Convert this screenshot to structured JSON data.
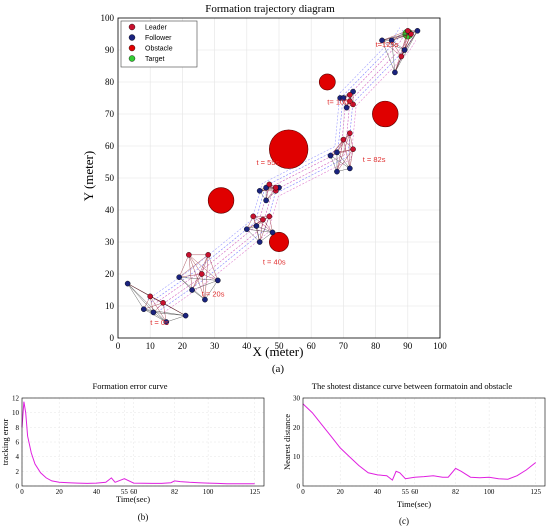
{
  "colors": {
    "leader": "#c8102e",
    "follower": "#1a237e",
    "obstacle": "#e00000",
    "target": "#33cc33",
    "curve": "#e020e0",
    "timestamp": "#e03030"
  },
  "chart_data": [
    {
      "type": "scatter",
      "title": "Formation trajectory diagram",
      "xlabel": "X  (meter)",
      "ylabel": "Y  (meter)",
      "xlim": [
        0,
        100
      ],
      "ylim": [
        0,
        100
      ],
      "xticks": [
        "0",
        "10",
        "20",
        "30",
        "40",
        "50",
        "60",
        "70",
        "80",
        "90",
        "100"
      ],
      "yticks": [
        "0",
        "10",
        "20",
        "30",
        "40",
        "50",
        "60",
        "70",
        "80",
        "90",
        "100"
      ],
      "grid": true,
      "legend_position": "top-left",
      "legend": [
        {
          "label": "Leader",
          "kind": "leader"
        },
        {
          "label": "Follower",
          "kind": "follower"
        },
        {
          "label": "Obstacle",
          "kind": "obstacle"
        },
        {
          "label": "Target",
          "kind": "target"
        }
      ],
      "obstacles": [
        {
          "x": 32,
          "y": 43,
          "r": 4
        },
        {
          "x": 50,
          "y": 30,
          "r": 3
        },
        {
          "x": 53,
          "y": 59,
          "r": 6
        },
        {
          "x": 65,
          "y": 80,
          "r": 2.5
        },
        {
          "x": 83,
          "y": 70,
          "r": 4
        }
      ],
      "target": {
        "x": 90,
        "y": 95
      },
      "formations": [
        {
          "time_label": "t = 0s",
          "label_x": 10,
          "label_y": 4,
          "leaders": [
            [
              14,
              11
            ],
            [
              10,
              13
            ]
          ],
          "followers": [
            [
              3,
              17
            ],
            [
              11,
              8
            ],
            [
              15,
              5
            ],
            [
              8,
              9
            ],
            [
              21,
              7
            ]
          ]
        },
        {
          "time_label": "t = 20s",
          "label_x": 26,
          "label_y": 13,
          "leaders": [
            [
              26,
              20
            ],
            [
              22,
              26
            ],
            [
              28,
              26
            ]
          ],
          "followers": [
            [
              19,
              19
            ],
            [
              23,
              15
            ],
            [
              27,
              12
            ],
            [
              31,
              18
            ]
          ]
        },
        {
          "time_label": "t = 40s",
          "label_x": 45,
          "label_y": 23,
          "leaders": [
            [
              45,
              37
            ],
            [
              42,
              38
            ],
            [
              47,
              38
            ]
          ],
          "followers": [
            [
              40,
              34
            ],
            [
              43,
              35
            ],
            [
              44,
              30
            ],
            [
              48,
              33
            ]
          ]
        },
        {
          "time_label": "t = 55s",
          "label_x": 43,
          "label_y": 54,
          "leaders": [
            [
              47,
              48
            ],
            [
              49,
              46
            ],
            [
              49,
              47
            ]
          ],
          "followers": [
            [
              44,
              46
            ],
            [
              46,
              47
            ],
            [
              46,
              43
            ],
            [
              50,
              47
            ]
          ]
        },
        {
          "time_label": "t = 82s",
          "label_x": 76,
          "label_y": 55,
          "leaders": [
            [
              73,
              59
            ],
            [
              70,
              62
            ],
            [
              72,
              64
            ]
          ],
          "followers": [
            [
              66,
              57
            ],
            [
              68,
              58
            ],
            [
              68,
              52
            ],
            [
              72,
              53
            ]
          ]
        },
        {
          "time_label": "t= 100s",
          "label_x": 65,
          "label_y": 73,
          "leaders": [
            [
              72,
              76
            ],
            [
              73,
              73
            ],
            [
              72,
              74
            ]
          ],
          "followers": [
            [
              69,
              75
            ],
            [
              70,
              75
            ],
            [
              71,
              72
            ],
            [
              73,
              77
            ]
          ]
        },
        {
          "time_label": "t=125s",
          "label_x": 80,
          "label_y": 91,
          "leaders": [
            [
              88,
              88
            ],
            [
              91,
              95
            ],
            [
              90,
              96
            ]
          ],
          "followers": [
            [
              82,
              93
            ],
            [
              85,
              93
            ],
            [
              86,
              83
            ],
            [
              89,
              90
            ],
            [
              93,
              96
            ]
          ]
        }
      ],
      "caption": "(a)"
    },
    {
      "type": "line",
      "title": "Formation error curve",
      "xlabel": "Time(sec)",
      "ylabel": "tracking error",
      "xlim": [
        0,
        130
      ],
      "ylim": [
        0,
        12
      ],
      "xticks": [
        "0",
        "20",
        "40",
        "55",
        "60",
        "82",
        "100",
        "125"
      ],
      "yticks": [
        "0",
        "2",
        "4",
        "6",
        "8",
        "10",
        "12"
      ],
      "grid": true,
      "series": [
        {
          "x": [
            0,
            1,
            2,
            3,
            5,
            7,
            10,
            13,
            16,
            20,
            25,
            30,
            35,
            40,
            45,
            48,
            50,
            55,
            60,
            70,
            75,
            80,
            82,
            85,
            90,
            95,
            100,
            105,
            110,
            115,
            120,
            125
          ],
          "values": [
            8,
            11.5,
            10,
            6.8,
            4.5,
            3,
            1.8,
            1.1,
            0.7,
            0.5,
            0.45,
            0.4,
            0.35,
            0.4,
            0.5,
            1.1,
            0.5,
            1.0,
            0.4,
            0.35,
            0.35,
            0.45,
            0.7,
            0.6,
            0.5,
            0.45,
            0.4,
            0.35,
            0.3,
            0.3,
            0.3,
            0.3
          ]
        }
      ],
      "caption": "(b)"
    },
    {
      "type": "line",
      "title": "The shotest distance curve between formatoin and obstacle",
      "xlabel": "Time(sec)",
      "ylabel": "Nearest distance",
      "xlim": [
        0,
        130
      ],
      "ylim": [
        0,
        30
      ],
      "xticks": [
        "0",
        "20",
        "40",
        "55",
        "60",
        "82",
        "100",
        "125"
      ],
      "yticks": [
        "0",
        "10",
        "20",
        "30"
      ],
      "grid": true,
      "series": [
        {
          "x": [
            0,
            5,
            10,
            15,
            20,
            25,
            30,
            35,
            40,
            45,
            48,
            50,
            52,
            55,
            60,
            65,
            70,
            75,
            78,
            82,
            85,
            90,
            95,
            100,
            105,
            110,
            115,
            120,
            125
          ],
          "values": [
            28,
            25,
            21,
            17,
            13,
            10,
            7,
            4.5,
            3.8,
            3.5,
            2,
            5,
            4.5,
            2.5,
            3,
            3.2,
            3.5,
            3,
            3,
            6,
            5,
            3,
            2.8,
            3,
            2.5,
            2.3,
            3.5,
            5.5,
            8
          ]
        }
      ],
      "caption": "(c)"
    }
  ]
}
